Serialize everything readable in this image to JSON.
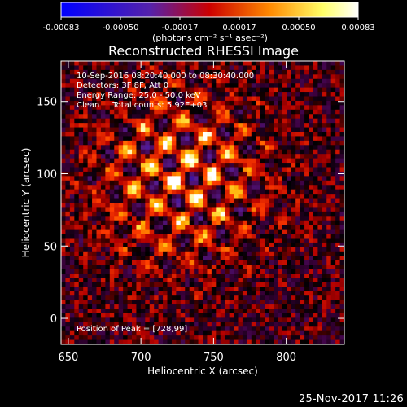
{
  "colorbar": {
    "ticks": [
      "-0.00083",
      "-0.00050",
      "-0.00017",
      "0.00017",
      "0.00050",
      "0.00083"
    ],
    "unit_label": "(photons cm⁻² s⁻¹ asec⁻²)",
    "colors": [
      "#0000ff",
      "#5522aa",
      "#ff2200",
      "#ff8800",
      "#ffff66",
      "#ffffff"
    ]
  },
  "chart_data": {
    "type": "heatmap",
    "title": "Reconstructed RHESSI Image",
    "xlabel": "Heliocentric X (arcsec)",
    "ylabel": "Heliocentric Y (arcsec)",
    "xlim": [
      645,
      840
    ],
    "ylim": [
      -18,
      178
    ],
    "x_ticks": [
      "650",
      "700",
      "750",
      "800"
    ],
    "y_ticks": [
      "0",
      "50",
      "100",
      "150"
    ],
    "x_tick_values": [
      650,
      700,
      750,
      800
    ],
    "y_tick_values": [
      0,
      50,
      100,
      150
    ],
    "value_range": [
      -0.00083,
      0.00083
    ],
    "peak": [
      728,
      99
    ],
    "annotations": [
      "10-Sep-2016 08:20:40.000 to 08:30:40.000",
      "Detectors: 3F 8F, Att 0",
      "Energy Range: 25.0 - 50.0 keV",
      "Clean     Total counts: 5.92E+03"
    ],
    "peak_label": "Position of Peak = [728,99]"
  },
  "footer": {
    "timestamp": "25-Nov-2017 11:26"
  }
}
